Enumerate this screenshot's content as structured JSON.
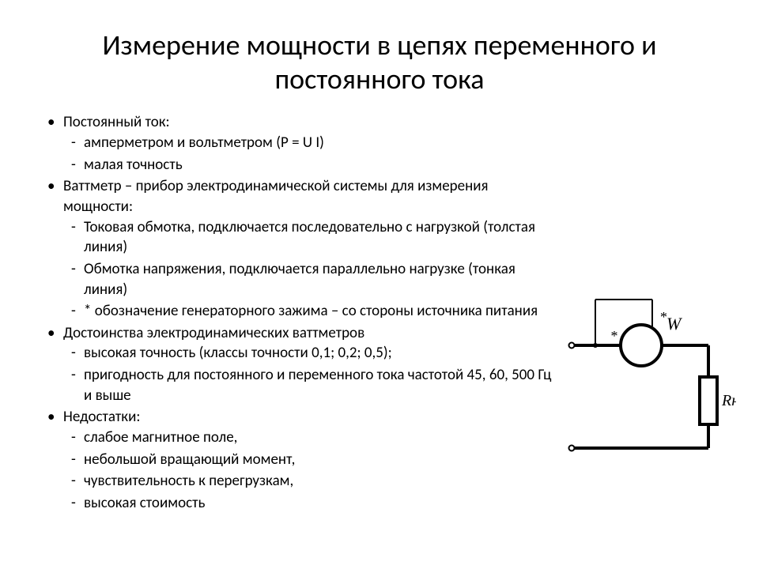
{
  "title": "Измерение мощности в цепях переменного и постоянного тока",
  "bullets": [
    {
      "text": "Постоянный ток:",
      "sub": [
        "амперметром и вольтметром (P = U I)",
        "малая точность"
      ]
    },
    {
      "text": "Ваттметр – прибор электродинамической системы для измерения мощности:",
      "sub": [
        "Токовая обмотка, подключается последовательно с нагрузкой (толстая линия)",
        "Обмотка напряжения, подключается параллельно нагрузке (тонкая линия)",
        "* обозначение генераторного зажима – со стороны источника питания"
      ]
    },
    {
      "text": "Достоинства электродинамических ваттметров",
      "sub": [
        "высокая точность (классы точности 0,1; 0,2; 0,5);",
        "пригодность для постоянного и переменного тока частотой 45, 60, 500 Гц и выше"
      ]
    },
    {
      "text": "Недостатки:",
      "sub": [
        "слабое магнитное поле,",
        "небольшой вращающий момент,",
        "чувствительность к перегрузкам,",
        "высокая стоимость"
      ]
    }
  ],
  "diagram": {
    "meter_label": "W",
    "load_label": "Rн",
    "asterisk": "*",
    "stroke_color": "#000000",
    "thick_stroke": 4,
    "thin_stroke": 2,
    "terminal_radius": 3.5,
    "meter_radius": 26,
    "font_family": "Times New Roman, serif",
    "font_size_W": 22,
    "font_size_R": 20,
    "font_size_star": 18
  }
}
